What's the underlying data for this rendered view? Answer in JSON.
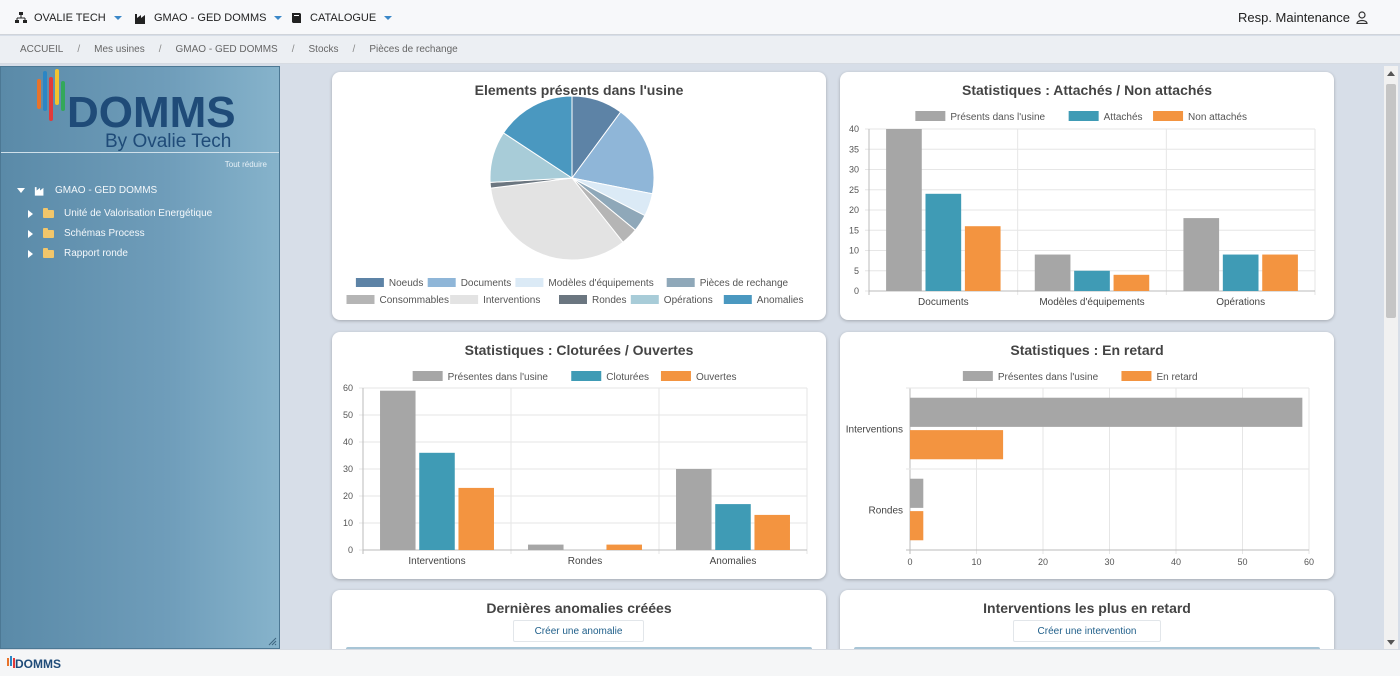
{
  "navbar": {
    "menus": [
      {
        "label": "OVALIE TECH",
        "icon": "sitemap-icon"
      },
      {
        "label": "GMAO - GED DOMMS",
        "icon": "factory-icon"
      },
      {
        "label": "CATALOGUE",
        "icon": "book-icon"
      }
    ],
    "user_label": "Resp. Maintenance",
    "user_icon": "user-icon"
  },
  "breadcrumb": [
    "ACCUEIL",
    "Mes usines",
    "GMAO - GED DOMMS",
    "Stocks",
    "Pièces de rechange"
  ],
  "sidebar": {
    "logo_text": "DOMMS",
    "logo_subtitle": "By Ovalie Tech",
    "collapse_all": "Tout réduire",
    "tree_root": "GMAO - GED DOMMS",
    "tree_children": [
      "Unité de Valorisation Energétique",
      "Schémas Process",
      "Rapport ronde"
    ]
  },
  "cards": {
    "pie_title": "Elements présents dans l'usine",
    "attaches_title": "Statistiques : Attachés / Non attachés",
    "cloturees_title": "Statistiques : Cloturées / Ouvertes",
    "retard_title": "Statistiques : En retard",
    "anomalies_title": "Dernières anomalies créées",
    "anomalies_button": "Créer une anomalie",
    "interventions_title": "Interventions les plus en retard",
    "interventions_button": "Créer une intervention"
  },
  "footer": {
    "logo_text": "DOMMS"
  },
  "colors": {
    "gray": "#a6a6a6",
    "teal": "#3f9bb5",
    "orange": "#f39440",
    "navbar_accent": "#3a87c8"
  },
  "chart_data": [
    {
      "type": "pie",
      "title": "Elements présents dans l'usine",
      "legend_position": "bottom",
      "slices": [
        {
          "label": "Noeuds",
          "value": 9,
          "color": "#5d83a6"
        },
        {
          "label": "Documents",
          "value": 16,
          "color": "#8fb6d8"
        },
        {
          "label": "Modèles d'équipements",
          "value": 4,
          "color": "#dbeaf6"
        },
        {
          "label": "Pièces de rechange",
          "value": 3,
          "color": "#8fa8b9"
        },
        {
          "label": "Consommables",
          "value": 3,
          "color": "#b5b5b5"
        },
        {
          "label": "Interventions",
          "value": 30,
          "color": "#e3e3e3"
        },
        {
          "label": "Rondes",
          "value": 1,
          "color": "#6b7680"
        },
        {
          "label": "Opérations",
          "value": 9,
          "color": "#a8ccd8"
        },
        {
          "label": "Anomalies",
          "value": 14,
          "color": "#4a98c0"
        }
      ]
    },
    {
      "type": "bar",
      "title": "Statistiques : Attachés / Non attachés",
      "categories": [
        "Documents",
        "Modèles d'équipements",
        "Opérations"
      ],
      "series": [
        {
          "name": "Présents dans l'usine",
          "values": [
            40,
            9,
            18
          ],
          "color": "#a6a6a6"
        },
        {
          "name": "Attachés",
          "values": [
            24,
            5,
            9
          ],
          "color": "#3f9bb5"
        },
        {
          "name": "Non attachés",
          "values": [
            16,
            4,
            9
          ],
          "color": "#f39440"
        }
      ],
      "ylim": [
        0,
        40
      ],
      "yticks": [
        0,
        5,
        10,
        15,
        20,
        25,
        30,
        35,
        40
      ],
      "legend_position": "top",
      "grid": true
    },
    {
      "type": "bar",
      "title": "Statistiques : Cloturées / Ouvertes",
      "categories": [
        "Interventions",
        "Rondes",
        "Anomalies"
      ],
      "series": [
        {
          "name": "Présentes dans l'usine",
          "values": [
            59,
            2,
            30
          ],
          "color": "#a6a6a6"
        },
        {
          "name": "Cloturées",
          "values": [
            36,
            0,
            17
          ],
          "color": "#3f9bb5"
        },
        {
          "name": "Ouvertes",
          "values": [
            23,
            2,
            13
          ],
          "color": "#f39440"
        }
      ],
      "ylim": [
        0,
        60
      ],
      "yticks": [
        0,
        10,
        20,
        30,
        40,
        50,
        60
      ],
      "legend_position": "top",
      "grid": true
    },
    {
      "type": "bar",
      "orientation": "horizontal",
      "title": "Statistiques : En retard",
      "categories": [
        "Interventions",
        "Rondes"
      ],
      "series": [
        {
          "name": "Présentes dans l'usine",
          "values": [
            59,
            2
          ],
          "color": "#a6a6a6"
        },
        {
          "name": "En retard",
          "values": [
            14,
            2
          ],
          "color": "#f39440"
        }
      ],
      "xlim": [
        0,
        60
      ],
      "xticks": [
        0,
        10,
        20,
        30,
        40,
        50,
        60
      ],
      "legend_position": "top",
      "grid": true
    }
  ]
}
